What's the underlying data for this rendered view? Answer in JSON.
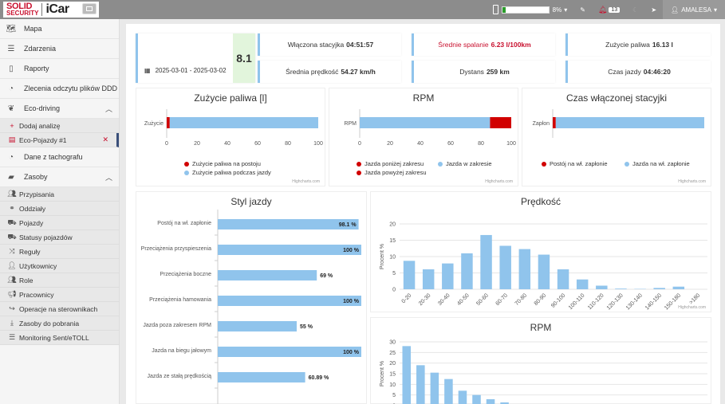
{
  "header": {
    "logo_solid": "SOLID",
    "logo_security": "SECURITY",
    "logo_app": "iCar",
    "battery_pct_label": "8%",
    "battery_fraction": 0.08,
    "notifications": "13",
    "user": "AMALESA"
  },
  "colors": {
    "accent_blue": "#90c4ec",
    "red": "#d10000",
    "brand_red": "#c8102e"
  },
  "sidebar": {
    "items": [
      {
        "label": "Mapa",
        "icon": "map-icon"
      },
      {
        "label": "Zdarzenia",
        "icon": "list-icon"
      },
      {
        "label": "Raporty",
        "icon": "file-icon"
      },
      {
        "label": "Zlecenia odczytu plików DDD",
        "icon": "gauge-icon"
      },
      {
        "label": "Eco-driving",
        "icon": "leaf-icon"
      }
    ],
    "eco_sub": [
      {
        "label": "Dodaj analizę",
        "icon": "plus-icon"
      },
      {
        "label": "Eco-Pojazdy #1",
        "icon": "table-icon"
      }
    ],
    "tacho": {
      "label": "Dane z tachografu",
      "icon": "gauge-icon"
    },
    "zasoby": {
      "label": "Zasoby",
      "icon": "folder-icon"
    },
    "zasoby_sub": [
      {
        "label": "Przypisania",
        "icon": "users-icon"
      },
      {
        "label": "Oddziały",
        "icon": "branch-icon"
      },
      {
        "label": "Pojazdy",
        "icon": "truck-icon"
      },
      {
        "label": "Statusy pojazdów",
        "icon": "truck-icon"
      },
      {
        "label": "Reguły",
        "icon": "shuffle-icon"
      },
      {
        "label": "Użytkownicy",
        "icon": "user-icon"
      },
      {
        "label": "Role",
        "icon": "users-icon"
      },
      {
        "label": "Pracownicy",
        "icon": "megaphone-icon"
      },
      {
        "label": "Operacje na sterownikach",
        "icon": "share-icon"
      },
      {
        "label": "Zasoby do pobrania",
        "icon": "download-icon"
      },
      {
        "label": "Monitoring Sent/eTOLL",
        "icon": "list-icon"
      }
    ]
  },
  "summary": {
    "date_range": "2025-03-01 - 2025-03-02",
    "score": "8.1",
    "stats": [
      {
        "label": "Włączona stacyjka",
        "value": "04:51:57"
      },
      {
        "label": "Średnie spalanie",
        "value": "6.23 l/100km"
      },
      {
        "label": "Zużycie paliwa",
        "value": "16.13 l"
      },
      {
        "label": "Średnia prędkość",
        "value": "54.27 km/h"
      },
      {
        "label": "Dystans",
        "value": "259 km"
      },
      {
        "label": "Czas jazdy",
        "value": "04:46:20"
      }
    ]
  },
  "credits": "Highcharts.com",
  "chart_data": [
    {
      "type": "bar",
      "stacked": true,
      "orientation": "horizontal",
      "title": "Zużycie paliwa [l]",
      "categories": [
        "Zużycie"
      ],
      "xlim": [
        0,
        100
      ],
      "ticks": [
        0,
        20,
        40,
        60,
        80,
        100
      ],
      "series": [
        {
          "name": "Zużycie paliwa na postoju",
          "color": "#d10000",
          "values": [
            2
          ]
        },
        {
          "name": "Zużycie paliwa podczas jazdy",
          "color": "#90c4ec",
          "values": [
            98
          ]
        }
      ]
    },
    {
      "type": "bar",
      "stacked": true,
      "orientation": "horizontal",
      "title": "RPM",
      "categories": [
        "RPM"
      ],
      "xlim": [
        0,
        100
      ],
      "ticks": [
        0,
        20,
        40,
        60,
        80,
        100
      ],
      "series": [
        {
          "name": "Jazda poniżej zakresu",
          "color": "#d10000",
          "values": [
            0
          ]
        },
        {
          "name": "Jazda w zakresie",
          "color": "#90c4ec",
          "values": [
            86
          ]
        },
        {
          "name": "Jazda powyżej zakresu",
          "color": "#d10000",
          "values": [
            14
          ]
        }
      ]
    },
    {
      "type": "bar",
      "stacked": true,
      "orientation": "horizontal",
      "title": "Czas włączonej stacyjki",
      "categories": [
        "Zapłon"
      ],
      "xlim": [
        0,
        100
      ],
      "ticks": [],
      "series": [
        {
          "name": "Postój na wł. zapłonie",
          "color": "#d10000",
          "values": [
            2
          ]
        },
        {
          "name": "Jazda na wł. zapłonie",
          "color": "#90c4ec",
          "values": [
            98
          ]
        }
      ]
    },
    {
      "type": "bar",
      "orientation": "horizontal",
      "title": "Styl jazdy",
      "categories": [
        "Postój na wł. zapłonie",
        "Przeciążenia przyspieszenia",
        "Przeciążenia boczne",
        "Przeciążenia hamowania",
        "Jazda poza zakresem RPM",
        "Jazda na biegu jałowym",
        "Jazda ze stałą prędkością"
      ],
      "values": [
        98.1,
        100,
        69,
        100,
        55,
        100,
        60.89
      ],
      "value_labels": [
        "98.1 %",
        "100 %",
        "69 %",
        "100 %",
        "55 %",
        "100 %",
        "60.89 %"
      ],
      "xlim": [
        0,
        100
      ]
    },
    {
      "type": "bar",
      "title": "Prędkość",
      "ylabel": "Procent %",
      "categories": [
        "0-20",
        "20-30",
        "30-40",
        "40-50",
        "50-60",
        "60-70",
        "70-80",
        "80-90",
        "90-100",
        "100-110",
        "110-120",
        "120-130",
        "130-140",
        "140-150",
        "150-180",
        ">180"
      ],
      "values": [
        8.7,
        6.1,
        7.9,
        11,
        16.6,
        13.3,
        12.3,
        10.6,
        6.1,
        3,
        1.1,
        0.2,
        0.1,
        0.4,
        0.8,
        0
      ],
      "ylim": [
        0,
        20
      ],
      "yticks": [
        0,
        5,
        10,
        15,
        20
      ]
    },
    {
      "type": "bar",
      "title": "RPM",
      "ylabel": "Procent %",
      "values": [
        28,
        19,
        15.5,
        12.5,
        7,
        5,
        3,
        1.5,
        0.5
      ],
      "ylim": [
        0,
        30
      ],
      "yticks": [
        0,
        5,
        10,
        15,
        20,
        25,
        30
      ]
    }
  ]
}
